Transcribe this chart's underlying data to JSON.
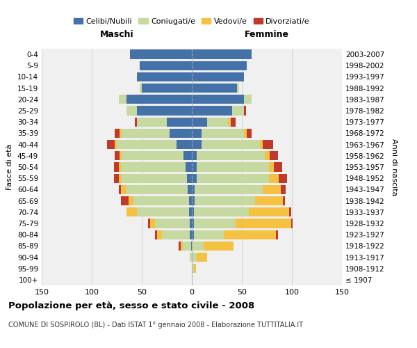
{
  "age_groups": [
    "100+",
    "95-99",
    "90-94",
    "85-89",
    "80-84",
    "75-79",
    "70-74",
    "65-69",
    "60-64",
    "55-59",
    "50-54",
    "45-49",
    "40-44",
    "35-39",
    "30-34",
    "25-29",
    "20-24",
    "15-19",
    "10-14",
    "5-9",
    "0-4"
  ],
  "birth_years": [
    "≤ 1907",
    "1908-1912",
    "1913-1917",
    "1918-1922",
    "1923-1927",
    "1928-1932",
    "1933-1937",
    "1938-1942",
    "1943-1947",
    "1948-1952",
    "1953-1957",
    "1958-1962",
    "1963-1967",
    "1968-1972",
    "1973-1977",
    "1978-1982",
    "1983-1987",
    "1988-1992",
    "1993-1997",
    "1998-2002",
    "2003-2007"
  ],
  "males": {
    "celibi": [
      0,
      0,
      0,
      1,
      2,
      2,
      3,
      3,
      4,
      5,
      6,
      8,
      15,
      22,
      25,
      55,
      65,
      50,
      55,
      52,
      62
    ],
    "coniugati": [
      0,
      0,
      2,
      8,
      28,
      35,
      52,
      55,
      62,
      65,
      65,
      62,
      60,
      48,
      30,
      10,
      8,
      2,
      0,
      0,
      0
    ],
    "vedovi": [
      0,
      0,
      0,
      2,
      5,
      5,
      10,
      5,
      5,
      3,
      2,
      2,
      2,
      2,
      0,
      0,
      0,
      0,
      0,
      0,
      0
    ],
    "divorziati": [
      0,
      0,
      0,
      2,
      2,
      2,
      0,
      8,
      2,
      5,
      5,
      5,
      8,
      5,
      2,
      0,
      0,
      0,
      0,
      0,
      0
    ]
  },
  "females": {
    "nubili": [
      0,
      0,
      0,
      0,
      2,
      2,
      2,
      3,
      3,
      5,
      5,
      5,
      10,
      10,
      15,
      40,
      52,
      45,
      52,
      55,
      60
    ],
    "coniugate": [
      0,
      2,
      5,
      12,
      30,
      42,
      55,
      60,
      68,
      72,
      72,
      68,
      58,
      42,
      22,
      12,
      8,
      2,
      0,
      0,
      0
    ],
    "vedove": [
      0,
      2,
      10,
      30,
      52,
      55,
      40,
      28,
      18,
      10,
      5,
      5,
      3,
      3,
      2,
      0,
      0,
      0,
      0,
      0,
      0
    ],
    "divorziate": [
      0,
      0,
      0,
      0,
      2,
      2,
      2,
      2,
      5,
      8,
      8,
      8,
      10,
      5,
      5,
      2,
      0,
      0,
      0,
      0,
      0
    ]
  },
  "colors": {
    "celibi": "#4472a8",
    "coniugati": "#c5d9a0",
    "vedovi": "#f5c142",
    "divorziati": "#c0392b"
  },
  "title": "Popolazione per età, sesso e stato civile - 2008",
  "subtitle": "COMUNE DI SOSPIROLO (BL) - Dati ISTAT 1° gennaio 2008 - Elaborazione TUTTITALIA.IT",
  "xlabel_left": "Maschi",
  "xlabel_right": "Femmine",
  "ylabel_left": "Fasce di età",
  "ylabel_right": "Anni di nascita",
  "legend_labels": [
    "Celibi/Nubili",
    "Coniugati/e",
    "Vedovi/e",
    "Divorziati/e"
  ],
  "xlim": 150,
  "bg_color": "#ffffff",
  "plot_bg_color": "#f0f0f0",
  "grid_color": "#cccccc"
}
